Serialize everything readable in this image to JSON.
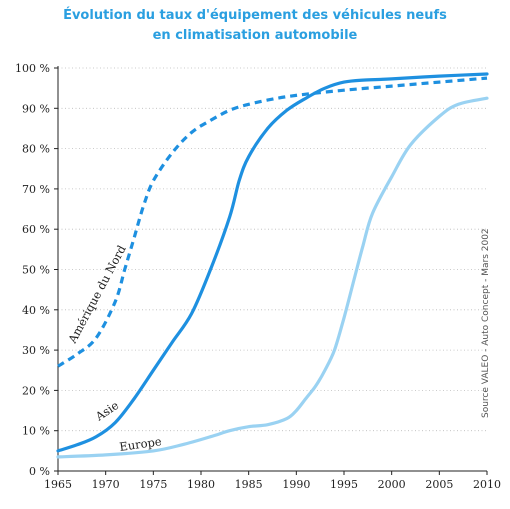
{
  "chart_data": {
    "type": "line",
    "title": "Évolution du taux d'équipement des véhicules neufs",
    "subtitle": "en climatisation automobile",
    "source": "Source VALEO - Auto Concept - Mars 2002",
    "xlim": [
      1965,
      2010
    ],
    "ylim": [
      0,
      100
    ],
    "x_ticks": [
      1965,
      1970,
      1975,
      1980,
      1985,
      1990,
      1995,
      2000,
      2005,
      2010
    ],
    "y_ticks": [
      0,
      10,
      20,
      30,
      40,
      50,
      60,
      70,
      80,
      90,
      100
    ],
    "y_tick_labels": [
      "0 %",
      "10 %",
      "20 %",
      "30 %",
      "40 %",
      "50 %",
      "60 %",
      "70 %",
      "80 %",
      "90 %",
      "100 %"
    ],
    "series": [
      {
        "name": "Amérique du Nord",
        "color": "#1e90e0",
        "dashed": true,
        "x": [
          1965,
          1967,
          1969,
          1971,
          1972,
          1973,
          1974,
          1975,
          1977,
          1979,
          1981,
          1983,
          1985,
          1988,
          1991,
          1995,
          2000,
          2005,
          2010
        ],
        "y": [
          26,
          29,
          33,
          42,
          50,
          58,
          66,
          72,
          79,
          84,
          87,
          89.5,
          91,
          92.5,
          93.5,
          94.5,
          95.5,
          96.5,
          97.5
        ]
      },
      {
        "name": "Asie",
        "color": "#1e90e0",
        "dashed": false,
        "x": [
          1965,
          1967,
          1969,
          1971,
          1973,
          1975,
          1977,
          1979,
          1981,
          1983,
          1984,
          1985,
          1987,
          1989,
          1991,
          1993,
          1995,
          1997,
          2000,
          2005,
          2010
        ],
        "y": [
          5,
          6.5,
          8.5,
          12,
          18,
          25,
          32,
          39,
          50,
          63,
          72,
          78,
          85,
          89.5,
          92.5,
          95,
          96.5,
          97,
          97.3,
          98,
          98.5
        ]
      },
      {
        "name": "Europe",
        "color": "#9ad2f2",
        "dashed": false,
        "x": [
          1965,
          1970,
          1975,
          1978,
          1981,
          1983,
          1985,
          1987,
          1989,
          1990,
          1991,
          1992,
          1993,
          1994,
          1995,
          1996,
          1997,
          1998,
          2000,
          2002,
          2005,
          2007,
          2010
        ],
        "y": [
          3.5,
          4,
          5,
          6.5,
          8.5,
          10,
          11,
          11.5,
          13,
          15,
          18,
          21,
          25,
          30,
          38,
          47,
          56,
          64,
          73,
          81,
          88,
          91,
          92.5
        ]
      }
    ],
    "series_labels": [
      "Amérique du Nord",
      "Asie",
      "Europe"
    ]
  }
}
